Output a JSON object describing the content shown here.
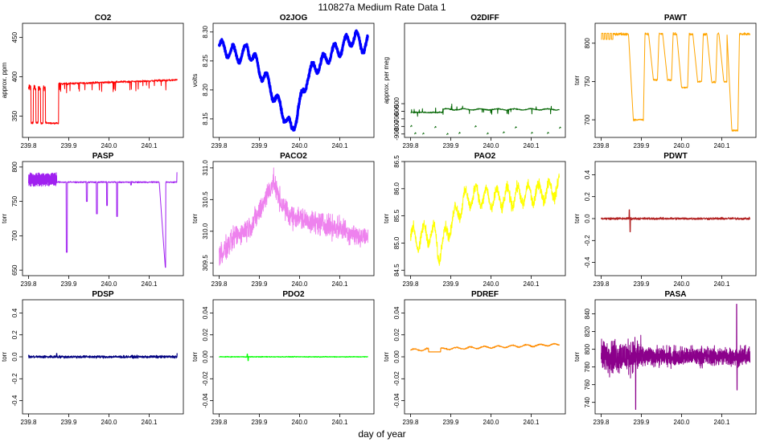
{
  "title": "110827a   Medium Rate Data 1",
  "xlabel": "day of year",
  "chart_data": [
    {
      "type": "line",
      "title": "CO2",
      "ylabel": "approx. ppm",
      "color": "#ff0000",
      "xlim": [
        239.785,
        240.185
      ],
      "ylim": [
        323,
        468
      ],
      "xticks": [
        239.8,
        239.9,
        240.0,
        240.1
      ],
      "yticks": [
        350,
        400,
        450
      ],
      "shape": {
        "kind": "co2",
        "base": 391,
        "end": 396
      }
    },
    {
      "type": "line",
      "title": "O2JOG",
      "ylabel": "volts",
      "color": "#0000ff",
      "xlim": [
        239.785,
        240.185
      ],
      "ylim": [
        8.118,
        8.315
      ],
      "xticks": [
        239.8,
        239.9,
        240.0,
        240.1
      ],
      "yticks": [
        8.15,
        8.2,
        8.25,
        8.3
      ],
      "shape": {
        "kind": "anchors",
        "x": [
          239.8,
          239.82,
          239.84,
          239.86,
          239.87,
          239.88,
          239.9,
          239.92,
          239.94,
          239.96,
          239.98,
          240.0,
          240.02,
          240.04,
          240.06,
          240.08,
          240.1,
          240.12,
          240.14,
          240.16,
          240.17
        ],
        "y": [
          8.275,
          8.268,
          8.262,
          8.258,
          8.275,
          8.262,
          8.235,
          8.215,
          8.185,
          8.16,
          8.13,
          8.172,
          8.225,
          8.24,
          8.25,
          8.265,
          8.27,
          8.285,
          8.29,
          8.275,
          8.28
        ],
        "amp": 0.012,
        "period": 0.028,
        "noise": 0.004,
        "width": 3.2
      }
    },
    {
      "type": "line",
      "title": "O2DIFF",
      "ylabel": "approx. per meg",
      "color": "#006400",
      "xlim": [
        239.785,
        240.185
      ],
      "ylim": [
        -945,
        560
      ],
      "xticks": [
        239.8,
        239.9,
        240.0,
        240.1
      ],
      "yticks": [
        -900,
        -800,
        -700,
        -600,
        -500
      ],
      "shape": {
        "kind": "o2diff",
        "upper": -580,
        "lower": -900
      }
    },
    {
      "type": "line",
      "title": "PAWT",
      "ylabel": "torr",
      "color": "#ffa500",
      "xlim": [
        239.785,
        240.185
      ],
      "ylim": [
        677,
        826
      ],
      "xticks": [
        239.8,
        239.9,
        240.0,
        240.1
      ],
      "yticks": [
        700,
        750,
        800
      ],
      "shape": {
        "kind": "pawt",
        "base": 812
      }
    },
    {
      "type": "line",
      "title": "PASP",
      "ylabel": "torr",
      "color": "#a020f0",
      "xlim": [
        239.785,
        240.185
      ],
      "ylim": [
        642,
        808
      ],
      "xticks": [
        239.8,
        239.9,
        240.0,
        240.1
      ],
      "yticks": [
        650,
        700,
        750,
        800
      ],
      "shape": {
        "kind": "pasp",
        "base": 778
      }
    },
    {
      "type": "line",
      "title": "PACO2",
      "ylabel": "torr",
      "color": "#ee82ee",
      "xlim": [
        239.785,
        240.185
      ],
      "ylim": [
        309.3,
        311.1
      ],
      "xticks": [
        239.8,
        239.9,
        240.0,
        240.1
      ],
      "yticks": [
        309.5,
        310.0,
        310.5,
        311.0
      ],
      "shape": {
        "kind": "anchors",
        "x": [
          239.8,
          239.82,
          239.84,
          239.86,
          239.88,
          239.9,
          239.92,
          239.935,
          239.95,
          239.97,
          240.0,
          240.05,
          240.1,
          240.15,
          240.17
        ],
        "y": [
          309.62,
          309.75,
          309.92,
          310.0,
          310.1,
          310.3,
          310.6,
          310.78,
          310.5,
          310.28,
          310.2,
          310.12,
          310.05,
          309.92,
          309.88
        ],
        "amp": 0,
        "period": 0.03,
        "noise": 0.22,
        "width": 1
      }
    },
    {
      "type": "line",
      "title": "PAO2",
      "ylabel": "torr",
      "color": "#ffff00",
      "xlim": [
        239.785,
        240.185
      ],
      "ylim": [
        84.4,
        86.5
      ],
      "xticks": [
        239.8,
        239.9,
        240.0,
        240.1
      ],
      "yticks": [
        84.5,
        85.0,
        85.5,
        86.0,
        86.5
      ],
      "shape": {
        "kind": "anchors",
        "x": [
          239.8,
          239.82,
          239.84,
          239.86,
          239.87,
          239.89,
          239.91,
          239.93,
          239.96,
          240.0,
          240.05,
          240.1,
          240.15,
          240.17
        ],
        "y": [
          85.15,
          85.05,
          85.2,
          85.15,
          84.82,
          85.2,
          85.5,
          85.75,
          85.9,
          85.8,
          85.85,
          85.9,
          85.98,
          86.05
        ],
        "amp": 0.18,
        "period": 0.026,
        "noise": 0.13,
        "width": 1
      }
    },
    {
      "type": "line",
      "title": "PDWT",
      "ylabel": "torr",
      "color": "#b22222",
      "xlim": [
        239.785,
        240.185
      ],
      "ylim": [
        -0.52,
        0.52
      ],
      "xticks": [
        239.8,
        239.9,
        240.0,
        240.1
      ],
      "yticks": [
        -0.4,
        -0.2,
        0.0,
        0.2,
        0.4
      ],
      "shape": {
        "kind": "flat",
        "base": 0.0,
        "noise": 0.012,
        "spikes": [
          [
            239.87,
            0.08
          ],
          [
            239.872,
            -0.12
          ]
        ]
      }
    },
    {
      "type": "line",
      "title": "PDSP",
      "ylabel": "torr",
      "color": "#000080",
      "xlim": [
        239.785,
        240.185
      ],
      "ylim": [
        -0.52,
        0.52
      ],
      "xticks": [
        239.8,
        239.9,
        240.0,
        240.1
      ],
      "yticks": [
        -0.4,
        -0.2,
        0.0,
        0.2,
        0.4
      ],
      "shape": {
        "kind": "flat",
        "base": 0.0,
        "noise": 0.014,
        "spikes": [
          [
            239.87,
            0.03
          ],
          [
            240.17,
            0.03
          ]
        ]
      }
    },
    {
      "type": "line",
      "title": "PDO2",
      "ylabel": "torr",
      "color": "#00ff00",
      "xlim": [
        239.785,
        240.185
      ],
      "ylim": [
        -0.052,
        0.052
      ],
      "xticks": [
        239.8,
        239.9,
        240.0,
        240.1
      ],
      "yticks": [
        -0.04,
        -0.02,
        0.0,
        0.02,
        0.04
      ],
      "shape": {
        "kind": "flat",
        "base": 0.0,
        "noise": 0.0004,
        "spikes": [
          [
            239.87,
            0.0025
          ],
          [
            239.872,
            -0.0035
          ]
        ]
      }
    },
    {
      "type": "line",
      "title": "PDREF",
      "ylabel": "torr",
      "color": "#ff8c00",
      "xlim": [
        239.785,
        240.185
      ],
      "ylim": [
        -0.052,
        0.052
      ],
      "xticks": [
        239.8,
        239.9,
        240.0,
        240.1
      ],
      "yticks": [
        -0.04,
        -0.02,
        0.0,
        0.02,
        0.04
      ],
      "shape": {
        "kind": "pdref"
      }
    },
    {
      "type": "line",
      "title": "PASA",
      "ylabel": "torr",
      "color": "#8b008b",
      "xlim": [
        239.785,
        240.185
      ],
      "ylim": [
        727,
        856
      ],
      "xticks": [
        239.8,
        239.9,
        240.0,
        240.1
      ],
      "yticks": [
        740,
        760,
        780,
        800,
        820,
        840
      ],
      "shape": {
        "kind": "pasa",
        "base": 792
      }
    }
  ]
}
